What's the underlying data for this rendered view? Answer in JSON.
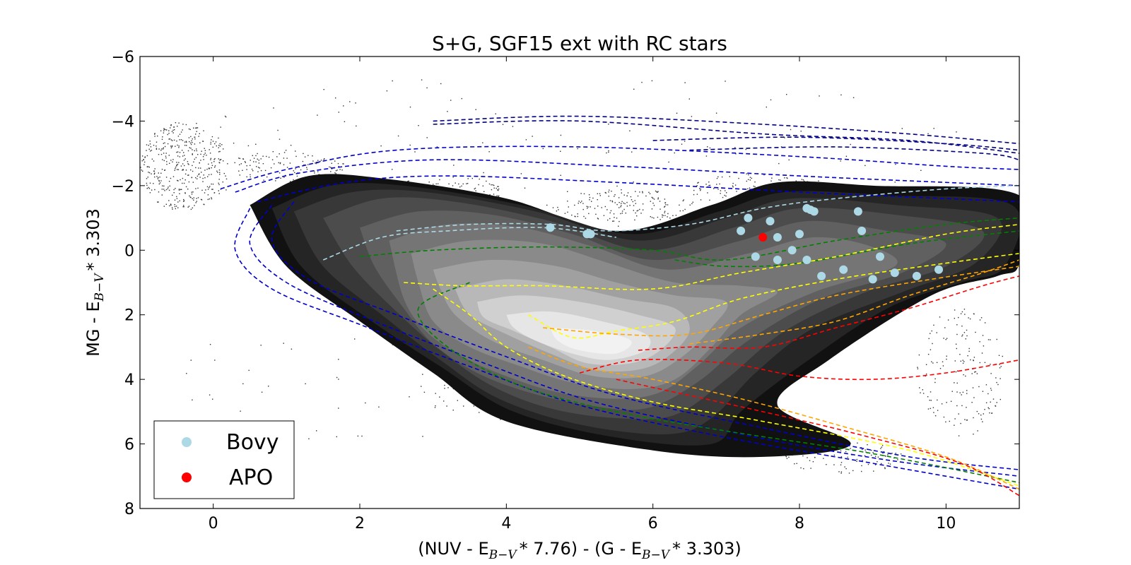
{
  "chart_data": {
    "type": "scatter",
    "title": "S+G, SGF15 ext with RC stars",
    "xlabel": {
      "part1": "(NUV - E",
      "sub1": "B−V",
      "part2": "* 7.76) - (G - E",
      "sub2": "B−V",
      "part3": "* 3.303)"
    },
    "ylabel": {
      "part1": "MG - E",
      "sub1": "B−V",
      "part2": "* 3.303"
    },
    "xlim": [
      -1,
      11
    ],
    "ylim": [
      8,
      -6
    ],
    "y_inverted": true,
    "grid": false,
    "x_ticks": [
      {
        "v": 0,
        "label": "0"
      },
      {
        "v": 2,
        "label": "2"
      },
      {
        "v": 4,
        "label": "4"
      },
      {
        "v": 6,
        "label": "6"
      },
      {
        "v": 8,
        "label": "8"
      },
      {
        "v": 10,
        "label": "10"
      }
    ],
    "y_ticks": [
      {
        "v": -6,
        "label": "−6"
      },
      {
        "v": -4,
        "label": "−4"
      },
      {
        "v": -2,
        "label": "−2"
      },
      {
        "v": 0,
        "label": "0"
      },
      {
        "v": 2,
        "label": "2"
      },
      {
        "v": 4,
        "label": "4"
      },
      {
        "v": 6,
        "label": "6"
      },
      {
        "v": 8,
        "label": "8"
      }
    ],
    "legend": {
      "placement": "lower-left",
      "entries": [
        {
          "name": "Bovy",
          "color": "#add8e6"
        },
        {
          "name": "APO",
          "color": "#ff0000"
        }
      ]
    },
    "density_contours": {
      "colors": [
        "#111111",
        "#252525",
        "#383838",
        "#4c4c4c",
        "#606060",
        "#757575",
        "#8a8a8a",
        "#a0a0a0",
        "#b8b8b8",
        "#d0d0d0",
        "#e6e6e6",
        "#f2f2f2"
      ],
      "levels": [
        [
          [
            0.5,
            -1.4
          ],
          [
            1.3,
            -2.3
          ],
          [
            2.4,
            -2.2
          ],
          [
            4,
            -1.6
          ],
          [
            5.5,
            -0.6
          ],
          [
            6.8,
            -1.4
          ],
          [
            7.7,
            -2.1
          ],
          [
            9,
            -2
          ],
          [
            11,
            -1.7
          ],
          [
            11,
            0.4
          ],
          [
            10.7,
            0.8
          ],
          [
            9.8,
            1.4
          ],
          [
            8.4,
            3.4
          ],
          [
            7.7,
            4.8
          ],
          [
            8.7,
            6
          ],
          [
            7.5,
            6.4
          ],
          [
            6,
            6.2
          ],
          [
            4,
            5.3
          ],
          [
            3,
            3.8
          ],
          [
            2,
            2.2
          ],
          [
            1,
            0.5
          ]
        ],
        [
          [
            0.8,
            -1.3
          ],
          [
            1.6,
            -2
          ],
          [
            2.6,
            -2
          ],
          [
            4.2,
            -1.4
          ],
          [
            5.7,
            -0.5
          ],
          [
            6.9,
            -1.2
          ],
          [
            7.8,
            -1.8
          ],
          [
            9.2,
            -1.7
          ],
          [
            10.9,
            -1.4
          ],
          [
            10.8,
            0.5
          ],
          [
            10.2,
            1
          ],
          [
            9.2,
            1.8
          ],
          [
            8,
            3.6
          ],
          [
            7.2,
            5
          ],
          [
            6.8,
            6
          ],
          [
            5.5,
            5.8
          ],
          [
            4.1,
            5
          ],
          [
            3.1,
            3.6
          ],
          [
            2.1,
            2.1
          ],
          [
            1.2,
            0.5
          ]
        ],
        [
          [
            1.1,
            -1.2
          ],
          [
            1.9,
            -1.8
          ],
          [
            2.9,
            -1.8
          ],
          [
            4.4,
            -1.2
          ],
          [
            5.8,
            -0.3
          ],
          [
            7,
            -1
          ],
          [
            7.9,
            -1.6
          ],
          [
            9.3,
            -1.4
          ],
          [
            10.7,
            -1
          ],
          [
            10.4,
            0.4
          ],
          [
            9.4,
            1.3
          ],
          [
            8.2,
            2.4
          ],
          [
            7.4,
            3.8
          ],
          [
            6.8,
            5.2
          ],
          [
            6.2,
            5.7
          ],
          [
            5,
            5.4
          ],
          [
            3.9,
            4.6
          ],
          [
            3.1,
            3.4
          ],
          [
            2.3,
            2
          ],
          [
            1.5,
            0.5
          ]
        ],
        [
          [
            1.5,
            -1
          ],
          [
            2.3,
            -1.6
          ],
          [
            3.3,
            -1.5
          ],
          [
            4.6,
            -0.9
          ],
          [
            5.9,
            0
          ],
          [
            7.1,
            -0.7
          ],
          [
            8,
            -1.3
          ],
          [
            9.3,
            -1.1
          ],
          [
            10.5,
            -0.6
          ],
          [
            10,
            0.5
          ],
          [
            8.9,
            1.3
          ],
          [
            7.8,
            2.5
          ],
          [
            7,
            4
          ],
          [
            6.3,
            5.1
          ],
          [
            5.5,
            5.2
          ],
          [
            4.6,
            4.9
          ],
          [
            3.8,
            4.2
          ],
          [
            3.1,
            3.1
          ],
          [
            2.5,
            1.9
          ],
          [
            1.9,
            0.5
          ]
        ],
        [
          [
            2,
            -0.7
          ],
          [
            2.8,
            -1.2
          ],
          [
            3.8,
            -1.1
          ],
          [
            4.9,
            -0.5
          ],
          [
            6,
            0.3
          ],
          [
            7.2,
            -0.3
          ],
          [
            8.1,
            -0.9
          ],
          [
            9.2,
            -0.6
          ],
          [
            10,
            -0.2
          ],
          [
            9.4,
            0.7
          ],
          [
            8.3,
            1.5
          ],
          [
            7.3,
            2.8
          ],
          [
            6.6,
            4.1
          ],
          [
            5.9,
            4.9
          ],
          [
            5.1,
            4.8
          ],
          [
            4.3,
            4.4
          ],
          [
            3.6,
            3.8
          ],
          [
            3,
            2.9
          ],
          [
            2.6,
            1.8
          ],
          [
            2.2,
            0.5
          ]
        ],
        [
          [
            2.4,
            -0.3
          ],
          [
            3.2,
            -0.8
          ],
          [
            4.2,
            -0.7
          ],
          [
            5.2,
            -0.1
          ],
          [
            6.2,
            0.6
          ],
          [
            7.3,
            0.1
          ],
          [
            8.2,
            -0.4
          ],
          [
            9,
            -0.1
          ],
          [
            9.3,
            0.5
          ],
          [
            8.2,
            1.3
          ],
          [
            7.2,
            2.4
          ],
          [
            6.6,
            3.6
          ],
          [
            6.1,
            4.4
          ],
          [
            5.5,
            4.6
          ],
          [
            4.7,
            4.4
          ],
          [
            4,
            3.9
          ],
          [
            3.4,
            3.3
          ],
          [
            2.9,
            2.5
          ],
          [
            2.6,
            1.5
          ]
        ],
        [
          [
            2.7,
            0.1
          ],
          [
            3.5,
            -0.3
          ],
          [
            4.5,
            -0.2
          ],
          [
            5.4,
            0.4
          ],
          [
            6.3,
            1
          ],
          [
            7.2,
            1.1
          ],
          [
            7.7,
            1.3
          ],
          [
            7.2,
            2
          ],
          [
            6.8,
            3
          ],
          [
            6.3,
            4
          ],
          [
            5.7,
            4.3
          ],
          [
            4.9,
            4.1
          ],
          [
            4.2,
            3.6
          ],
          [
            3.5,
            3
          ],
          [
            3,
            2.2
          ],
          [
            2.8,
            1
          ]
        ],
        [
          [
            3,
            0.6
          ],
          [
            3.8,
            0.3
          ],
          [
            4.7,
            0.5
          ],
          [
            5.5,
            1
          ],
          [
            6.3,
            1.4
          ],
          [
            7,
            1.6
          ],
          [
            6.8,
            2.4
          ],
          [
            6.4,
            3.3
          ],
          [
            5.9,
            3.9
          ],
          [
            5.2,
            3.9
          ],
          [
            4.5,
            3.4
          ],
          [
            3.8,
            2.8
          ],
          [
            3.3,
            2
          ],
          [
            3.1,
            1.2
          ]
        ],
        [
          [
            3.3,
            1.2
          ],
          [
            4,
            0.9
          ],
          [
            4.8,
            1.1
          ],
          [
            5.6,
            1.5
          ],
          [
            6.3,
            1.8
          ],
          [
            6.5,
            2.5
          ],
          [
            6.2,
            3.3
          ],
          [
            5.8,
            3.7
          ],
          [
            5.2,
            3.7
          ],
          [
            4.6,
            3.2
          ],
          [
            4,
            2.6
          ],
          [
            3.5,
            2
          ]
        ],
        [
          [
            3.6,
            1.6
          ],
          [
            4.2,
            1.4
          ],
          [
            5,
            1.6
          ],
          [
            5.8,
            2
          ],
          [
            6.3,
            2.4
          ],
          [
            6.1,
            3.1
          ],
          [
            5.7,
            3.5
          ],
          [
            5.1,
            3.5
          ],
          [
            4.6,
            3
          ],
          [
            4.1,
            2.5
          ],
          [
            3.7,
            2.1
          ]
        ],
        [
          [
            4,
            2
          ],
          [
            4.6,
            1.9
          ],
          [
            5.3,
            2.2
          ],
          [
            5.9,
            2.6
          ],
          [
            5.9,
            3.1
          ],
          [
            5.4,
            3.4
          ],
          [
            4.9,
            3.2
          ],
          [
            4.4,
            2.8
          ],
          [
            4.1,
            2.4
          ]
        ],
        [
          [
            4.6,
            2.4
          ],
          [
            5.2,
            2.5
          ],
          [
            5.7,
            2.8
          ],
          [
            5.5,
            3.2
          ],
          [
            5,
            3.1
          ],
          [
            4.7,
            2.8
          ]
        ]
      ]
    },
    "series": [
      {
        "name": "Bovy",
        "color": "#add8e6",
        "points": [
          [
            4.6,
            -0.7
          ],
          [
            5.1,
            -0.5
          ],
          [
            5.15,
            -0.5
          ],
          [
            7.3,
            -1
          ],
          [
            7.6,
            -0.9
          ],
          [
            8.1,
            -1.3
          ],
          [
            8.2,
            -1.2
          ],
          [
            7.2,
            -0.6
          ],
          [
            7.7,
            -0.4
          ],
          [
            8.0,
            -0.5
          ],
          [
            7.4,
            0.2
          ],
          [
            7.7,
            0.3
          ],
          [
            7.9,
            0
          ],
          [
            8.1,
            0.3
          ],
          [
            8.3,
            0.8
          ],
          [
            8.6,
            0.6
          ],
          [
            8.8,
            -1.2
          ],
          [
            8.85,
            -0.6
          ],
          [
            9.1,
            0.2
          ],
          [
            9.0,
            0.9
          ],
          [
            9.3,
            0.7
          ],
          [
            9.6,
            0.8
          ],
          [
            9.9,
            0.6
          ],
          [
            8.15,
            -1.25
          ]
        ]
      },
      {
        "name": "APO",
        "color": "#ff0000",
        "points": [
          [
            7.5,
            -0.4
          ]
        ]
      }
    ],
    "isochrone_colors": [
      "#000080",
      "#0000cd",
      "#add8e6",
      "#008000",
      "#ffff00",
      "#ffa500",
      "#ff0000"
    ]
  }
}
